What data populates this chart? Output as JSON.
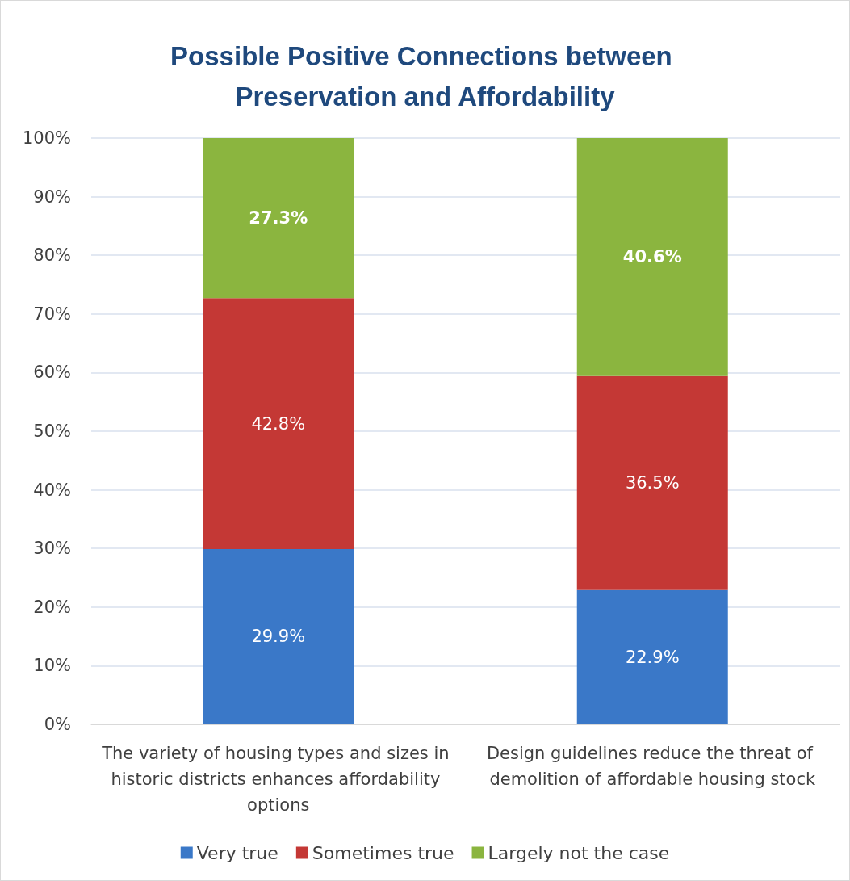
{
  "chart_data": {
    "type": "bar",
    "title": "Possible Positive Connections between Preservation and Affordability",
    "categories": [
      "The variety of housing types and sizes in historic districts enhances affordability options",
      "Design guidelines reduce the threat of demolition of affordable housing stock"
    ],
    "stacked": true,
    "series": [
      {
        "name": "Very true",
        "color": "#3a78c8",
        "values": [
          29.9,
          22.9
        ],
        "value_labels": [
          "29.9%",
          "22.9%"
        ]
      },
      {
        "name": "Sometimes true",
        "color": "#c43835",
        "values": [
          42.8,
          36.5
        ],
        "value_labels": [
          "42.8%",
          "36.5%"
        ]
      },
      {
        "name": "Largely not the case",
        "color": "#8bb53f",
        "values": [
          27.3,
          40.6
        ],
        "value_labels": [
          "27.3%",
          "40.6%"
        ]
      }
    ],
    "ylim": [
      0,
      100
    ],
    "yticks": [
      {
        "value": 0,
        "label": "0%"
      },
      {
        "value": 10,
        "label": "10%"
      },
      {
        "value": 20,
        "label": "20%"
      },
      {
        "value": 30,
        "label": "30%"
      },
      {
        "value": 40,
        "label": "40%"
      },
      {
        "value": 50,
        "label": "50%"
      },
      {
        "value": 60,
        "label": "60%"
      },
      {
        "value": 70,
        "label": "70%"
      },
      {
        "value": 80,
        "label": "80%"
      },
      {
        "value": 90,
        "label": "90%"
      },
      {
        "value": 100,
        "label": "100%"
      }
    ],
    "grid": "y",
    "legend": "bottom"
  }
}
